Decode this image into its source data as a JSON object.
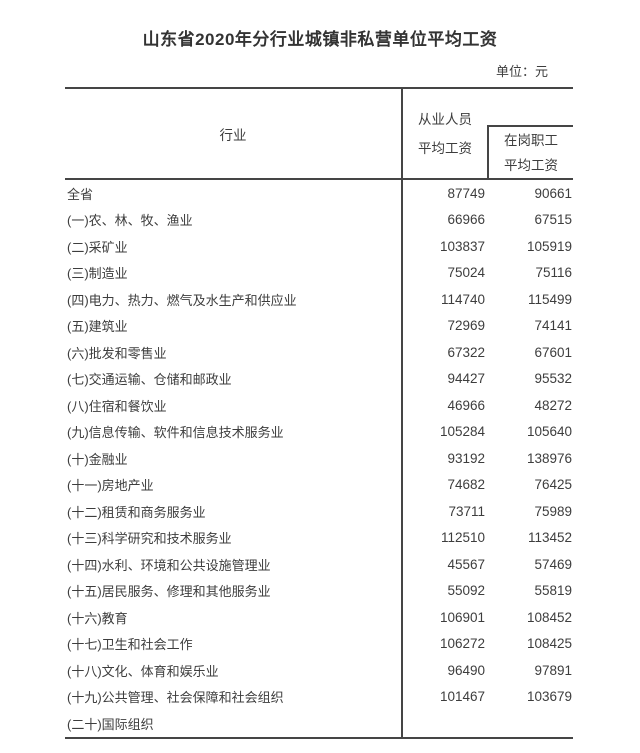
{
  "page": {
    "title": "山东省2020年分行业城镇非私营单位平均工资",
    "unit_label": "单位：元"
  },
  "table": {
    "header": {
      "industry": "行业",
      "employed_line1": "从业人员",
      "employed_line2": "平均工资",
      "staff_line1": "在岗职工",
      "staff_line2": "平均工资"
    },
    "rows": [
      {
        "industry": "全省",
        "employed_avg_wage": "87749",
        "staff_avg_wage": "90661"
      },
      {
        "industry": "(一)农、林、牧、渔业",
        "employed_avg_wage": "66966",
        "staff_avg_wage": "67515"
      },
      {
        "industry": "(二)采矿业",
        "employed_avg_wage": "103837",
        "staff_avg_wage": "105919"
      },
      {
        "industry": "(三)制造业",
        "employed_avg_wage": "75024",
        "staff_avg_wage": "75116"
      },
      {
        "industry": "(四)电力、热力、燃气及水生产和供应业",
        "employed_avg_wage": "114740",
        "staff_avg_wage": "115499"
      },
      {
        "industry": "(五)建筑业",
        "employed_avg_wage": "72969",
        "staff_avg_wage": "74141"
      },
      {
        "industry": "(六)批发和零售业",
        "employed_avg_wage": "67322",
        "staff_avg_wage": "67601"
      },
      {
        "industry": "(七)交通运输、仓储和邮政业",
        "employed_avg_wage": "94427",
        "staff_avg_wage": "95532"
      },
      {
        "industry": "(八)住宿和餐饮业",
        "employed_avg_wage": "46966",
        "staff_avg_wage": "48272"
      },
      {
        "industry": "(九)信息传输、软件和信息技术服务业",
        "employed_avg_wage": "105284",
        "staff_avg_wage": "105640"
      },
      {
        "industry": "(十)金融业",
        "employed_avg_wage": "93192",
        "staff_avg_wage": "138976"
      },
      {
        "industry": "(十一)房地产业",
        "employed_avg_wage": "74682",
        "staff_avg_wage": "76425"
      },
      {
        "industry": "(十二)租赁和商务服务业",
        "employed_avg_wage": "73711",
        "staff_avg_wage": "75989"
      },
      {
        "industry": "(十三)科学研究和技术服务业",
        "employed_avg_wage": "112510",
        "staff_avg_wage": "113452"
      },
      {
        "industry": "(十四)水利、环境和公共设施管理业",
        "employed_avg_wage": "45567",
        "staff_avg_wage": "57469"
      },
      {
        "industry": "(十五)居民服务、修理和其他服务业",
        "employed_avg_wage": "55092",
        "staff_avg_wage": "55819"
      },
      {
        "industry": "(十六)教育",
        "employed_avg_wage": "106901",
        "staff_avg_wage": "108452"
      },
      {
        "industry": "(十七)卫生和社会工作",
        "employed_avg_wage": "106272",
        "staff_avg_wage": "108425"
      },
      {
        "industry": "(十八)文化、体育和娱乐业",
        "employed_avg_wage": "96490",
        "staff_avg_wage": "97891"
      },
      {
        "industry": "(十九)公共管理、社会保障和社会组织",
        "employed_avg_wage": "101467",
        "staff_avg_wage": "103679"
      },
      {
        "industry": "(二十)国际组织",
        "employed_avg_wage": "",
        "staff_avg_wage": ""
      }
    ]
  }
}
